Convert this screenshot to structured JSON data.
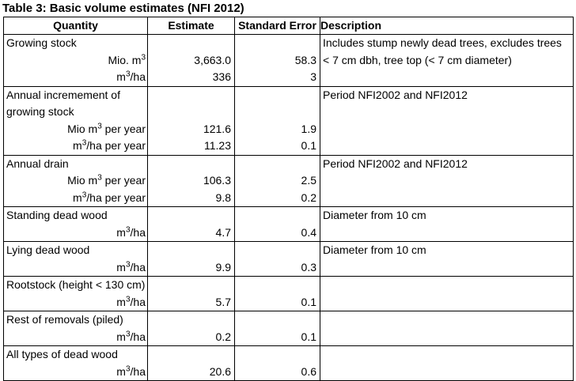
{
  "title": "Table 3: Basic volume estimates (NFI 2012)",
  "table": {
    "headers": [
      "Quantity",
      "Estimate",
      "Standard Error",
      "Description"
    ],
    "groups": [
      {
        "label_lines": [
          "Growing stock"
        ],
        "rows": [
          {
            "unit": [
              {
                "t": "Mio. m"
              },
              {
                "t": "3",
                "sup": true
              }
            ],
            "estimate": "3,663.0",
            "std_error": "58.3"
          },
          {
            "unit": [
              {
                "t": "m"
              },
              {
                "t": "3",
                "sup": true
              },
              {
                "t": "/ha"
              }
            ],
            "estimate": "336",
            "std_error": "3"
          }
        ],
        "description_lines": [
          "Includes stump newly dead trees, excludes trees",
          "< 7 cm dbh, tree top (< 7 cm diameter)"
        ]
      },
      {
        "label_lines": [
          "Annual incremement of",
          "growing stock"
        ],
        "rows": [
          {
            "unit": [
              {
                "t": "Mio m"
              },
              {
                "t": "3",
                "sup": true
              },
              {
                "t": " per year"
              }
            ],
            "estimate": "121.6",
            "std_error": "1.9"
          },
          {
            "unit": [
              {
                "t": "m"
              },
              {
                "t": "3",
                "sup": true
              },
              {
                "t": "/ha per year"
              }
            ],
            "estimate": "11.23",
            "std_error": "0.1"
          }
        ],
        "description_lines": [
          "Period NFI2002 and NFI2012"
        ]
      },
      {
        "label_lines": [
          "Annual drain"
        ],
        "rows": [
          {
            "unit": [
              {
                "t": "Mio m"
              },
              {
                "t": "3",
                "sup": true
              },
              {
                "t": " per year"
              }
            ],
            "estimate": "106.3",
            "std_error": "2.5"
          },
          {
            "unit": [
              {
                "t": "m"
              },
              {
                "t": "3",
                "sup": true
              },
              {
                "t": "/ha per year"
              }
            ],
            "estimate": "9.8",
            "std_error": "0.2"
          }
        ],
        "description_lines": [
          "Period NFI2002 and NFI2012"
        ]
      },
      {
        "label_lines": [
          "Standing dead wood"
        ],
        "rows": [
          {
            "unit": [
              {
                "t": "m"
              },
              {
                "t": "3",
                "sup": true
              },
              {
                "t": "/ha"
              }
            ],
            "estimate": "4.7",
            "std_error": "0.4"
          }
        ],
        "description_lines": [
          "Diameter from 10 cm"
        ]
      },
      {
        "label_lines": [
          "Lying dead wood"
        ],
        "rows": [
          {
            "unit": [
              {
                "t": "m"
              },
              {
                "t": "3",
                "sup": true
              },
              {
                "t": "/ha"
              }
            ],
            "estimate": "9.9",
            "std_error": "0.3"
          }
        ],
        "description_lines": [
          "Diameter from 10 cm"
        ]
      },
      {
        "label_lines": [
          "Rootstock (height < 130 cm)"
        ],
        "rows": [
          {
            "unit": [
              {
                "t": "m"
              },
              {
                "t": "3",
                "sup": true
              },
              {
                "t": "/ha"
              }
            ],
            "estimate": "5.7",
            "std_error": "0.1"
          }
        ],
        "description_lines": []
      },
      {
        "label_lines": [
          "Rest of removals (piled)"
        ],
        "rows": [
          {
            "unit": [
              {
                "t": "m"
              },
              {
                "t": "3",
                "sup": true
              },
              {
                "t": "/ha"
              }
            ],
            "estimate": "0.2",
            "std_error": "0.1"
          }
        ],
        "description_lines": []
      },
      {
        "label_lines": [
          "All types of dead wood"
        ],
        "rows": [
          {
            "unit": [
              {
                "t": "m"
              },
              {
                "t": "3",
                "sup": true
              },
              {
                "t": "/ha"
              }
            ],
            "estimate": "20.6",
            "std_error": "0.6"
          }
        ],
        "description_lines": []
      }
    ]
  }
}
